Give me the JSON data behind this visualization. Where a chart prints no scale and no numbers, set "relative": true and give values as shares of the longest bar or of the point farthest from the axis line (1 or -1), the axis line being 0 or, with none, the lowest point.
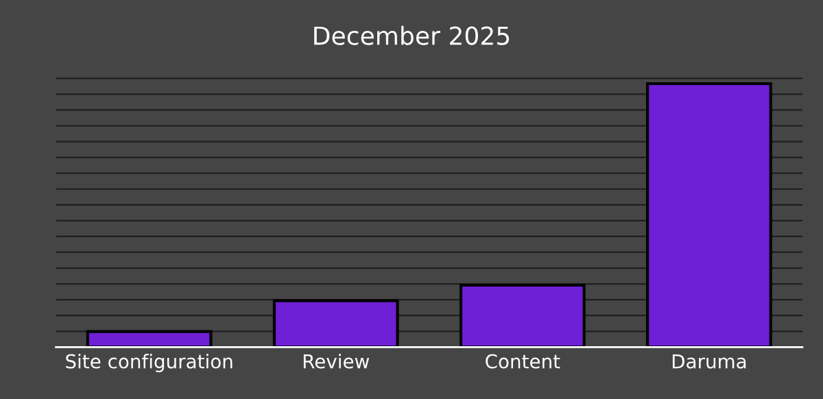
{
  "chart_data": {
    "type": "bar",
    "title": "December 2025",
    "categories": [
      "Site configuration",
      "Review",
      "Content",
      "Daruma"
    ],
    "values": [
      0.059,
      0.176,
      0.235,
      1
    ],
    "color": "#6f1fd6",
    "relative": true,
    "grid": "y",
    "tick_labels": "x"
  }
}
